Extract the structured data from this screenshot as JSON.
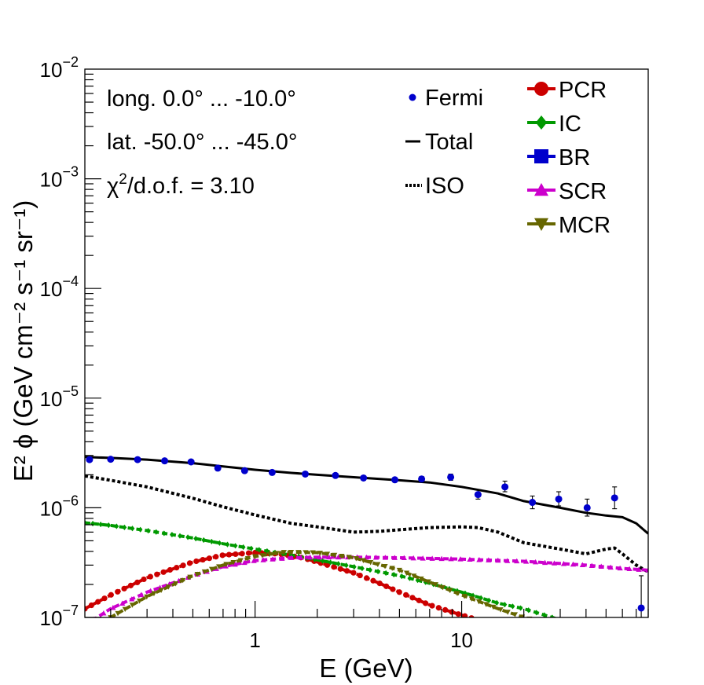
{
  "chart_data": {
    "type": "line",
    "xscale": "log",
    "yscale": "log",
    "xlim": [
      0.15,
      80
    ],
    "ylim": [
      1e-07,
      0.01
    ],
    "xlabel": "E (GeV)",
    "ylabel": "E² ϕ (GeV cm⁻² s⁻¹ sr⁻¹)",
    "x_ticks": [
      {
        "value": 1,
        "label": "1"
      },
      {
        "value": 10,
        "label": "10"
      }
    ],
    "y_ticks": [
      {
        "value": 1e-07,
        "base": "10",
        "exp": "−7"
      },
      {
        "value": 1e-06,
        "base": "10",
        "exp": "−6"
      },
      {
        "value": 1e-05,
        "base": "10",
        "exp": "−5"
      },
      {
        "value": 0.0001,
        "base": "10",
        "exp": "−4"
      },
      {
        "value": 0.001,
        "base": "10",
        "exp": "−3"
      },
      {
        "value": 0.01,
        "base": "10",
        "exp": "−2"
      }
    ],
    "annotations": {
      "longitude": "long. 0.0° ... -10.0°",
      "latitude": "lat. -50.0° ... -45.0°",
      "chi2_symbol": "χ",
      "chi2_sup": "2",
      "chi2_rest": "/d.o.f. = 3.10"
    },
    "fermi": {
      "name": "Fermi",
      "color": "#0000cc",
      "points": [
        {
          "x": 0.158,
          "y": 2.75e-06,
          "lo": 2.7e-06,
          "hi": 2.8e-06
        },
        {
          "x": 0.2,
          "y": 2.77e-06,
          "lo": 2.72e-06,
          "hi": 2.82e-06
        },
        {
          "x": 0.27,
          "y": 2.75e-06,
          "lo": 2.7e-06,
          "hi": 2.8e-06
        },
        {
          "x": 0.365,
          "y": 2.68e-06,
          "lo": 2.63e-06,
          "hi": 2.73e-06
        },
        {
          "x": 0.49,
          "y": 2.62e-06,
          "lo": 2.57e-06,
          "hi": 2.67e-06
        },
        {
          "x": 0.66,
          "y": 2.3e-06,
          "lo": 2.25e-06,
          "hi": 2.35e-06
        },
        {
          "x": 0.89,
          "y": 2.18e-06,
          "lo": 2.13e-06,
          "hi": 2.23e-06
        },
        {
          "x": 1.21,
          "y": 2.1e-06,
          "lo": 2.05e-06,
          "hi": 2.15e-06
        },
        {
          "x": 1.75,
          "y": 2.03e-06,
          "lo": 1.98e-06,
          "hi": 2.08e-06
        },
        {
          "x": 2.45,
          "y": 1.97e-06,
          "lo": 1.92e-06,
          "hi": 2.02e-06
        },
        {
          "x": 3.35,
          "y": 1.87e-06,
          "lo": 1.82e-06,
          "hi": 1.92e-06
        },
        {
          "x": 4.75,
          "y": 1.8e-06,
          "lo": 1.74e-06,
          "hi": 1.86e-06
        },
        {
          "x": 6.4,
          "y": 1.83e-06,
          "lo": 1.74e-06,
          "hi": 1.93e-06
        },
        {
          "x": 8.85,
          "y": 1.9e-06,
          "lo": 1.78e-06,
          "hi": 2.03e-06
        },
        {
          "x": 12.0,
          "y": 1.32e-06,
          "lo": 1.2e-06,
          "hi": 1.46e-06
        },
        {
          "x": 16.2,
          "y": 1.55e-06,
          "lo": 1.4e-06,
          "hi": 1.75e-06
        },
        {
          "x": 22.0,
          "y": 1.12e-06,
          "lo": 9.8e-07,
          "hi": 1.28e-06
        },
        {
          "x": 29.5,
          "y": 1.2e-06,
          "lo": 1.04e-06,
          "hi": 1.4e-06
        },
        {
          "x": 40.5,
          "y": 1e-06,
          "lo": 8.4e-07,
          "hi": 1.2e-06
        },
        {
          "x": 55.0,
          "y": 1.23e-06,
          "lo": 9.8e-07,
          "hi": 1.55e-06
        },
        {
          "x": 74.0,
          "y": 1.22e-07,
          "lo": 1e-07,
          "hi": 2.4e-07
        }
      ]
    },
    "series": [
      {
        "name": "Total",
        "style": "solid",
        "color": "#000000",
        "x": [
          0.15,
          0.2,
          0.3,
          0.5,
          0.7,
          1.0,
          1.5,
          2.0,
          3.0,
          5.0,
          7.0,
          10.0,
          15.0,
          20.0,
          30.0,
          40.0,
          50.0,
          60.0,
          70.0,
          80.0
        ],
        "y": [
          2.9e-06,
          2.85e-06,
          2.75e-06,
          2.55e-06,
          2.38e-06,
          2.22e-06,
          2.08e-06,
          2e-06,
          1.9e-06,
          1.78e-06,
          1.7e-06,
          1.55e-06,
          1.35e-06,
          1.15e-06,
          1e-06,
          9e-07,
          8.5e-07,
          8.2e-07,
          7.2e-07,
          5.8e-07
        ]
      },
      {
        "name": "ISO",
        "style": "dotted",
        "color": "#000000",
        "x": [
          0.15,
          0.2,
          0.3,
          0.5,
          0.7,
          1.0,
          1.5,
          2.0,
          3.0,
          4.0,
          5.0,
          7.0,
          10.0,
          12.0,
          15.0,
          20.0,
          30.0,
          40.0,
          50.0,
          55.0,
          60.0,
          70.0,
          80.0
        ],
        "y": [
          1.95e-06,
          1.78e-06,
          1.55e-06,
          1.22e-06,
          1.02e-06,
          8.6e-07,
          7.2e-07,
          6.7e-07,
          6e-07,
          6.1e-07,
          6.3e-07,
          6.6e-07,
          6.7e-07,
          6.6e-07,
          6e-07,
          4.8e-07,
          4.2e-07,
          3.8e-07,
          4.2e-07,
          4.3e-07,
          3.8e-07,
          3e-07,
          2.6e-07
        ]
      },
      {
        "name": "PCR",
        "style": "dashed-marker",
        "color": "#cc0000",
        "marker": "circle",
        "x": [
          0.15,
          0.2,
          0.3,
          0.5,
          0.7,
          1.0,
          1.3,
          1.7,
          2.0,
          3.0,
          4.0,
          5.0,
          7.0,
          10.0,
          12.0
        ],
        "y": [
          1.2e-07,
          1.6e-07,
          2.3e-07,
          3.2e-07,
          3.7e-07,
          3.9e-07,
          3.8e-07,
          3.5e-07,
          3.2e-07,
          2.55e-07,
          2.05e-07,
          1.7e-07,
          1.3e-07,
          1.05e-07,
          9.5e-08
        ]
      },
      {
        "name": "IC",
        "style": "dashed-marker",
        "color": "#009900",
        "marker": "diamond",
        "x": [
          0.15,
          0.2,
          0.3,
          0.5,
          0.7,
          1.0,
          1.5,
          2.0,
          3.0,
          5.0,
          7.0,
          10.0,
          15.0,
          20.0,
          30.0
        ],
        "y": [
          7.3e-07,
          6.9e-07,
          6.2e-07,
          5.3e-07,
          4.7e-07,
          4.2e-07,
          3.7e-07,
          3.35e-07,
          2.9e-07,
          2.4e-07,
          2.05e-07,
          1.7e-07,
          1.35e-07,
          1.2e-07,
          9.5e-08
        ]
      },
      {
        "name": "BR",
        "style": "dashed-marker",
        "color": "#0000cc",
        "marker": "square",
        "x": [],
        "y": []
      },
      {
        "name": "SCR",
        "style": "dashed-marker",
        "color": "#cc00cc",
        "marker": "triangle-up",
        "x": [
          0.15,
          0.2,
          0.3,
          0.5,
          0.7,
          1.0,
          1.5,
          2.0,
          3.0,
          5.0,
          10.0,
          20.0,
          40.0,
          60.0,
          80.0
        ],
        "y": [
          8.5e-08,
          1.2e-07,
          1.7e-07,
          2.4e-07,
          2.9e-07,
          3.3e-07,
          3.5e-07,
          3.55e-07,
          3.55e-07,
          3.5e-07,
          3.4e-07,
          3.25e-07,
          3e-07,
          2.8e-07,
          2.7e-07
        ]
      },
      {
        "name": "MCR",
        "style": "dashed-marker",
        "color": "#666600",
        "marker": "triangle-down",
        "x": [
          0.2,
          0.3,
          0.5,
          0.7,
          1.0,
          1.4,
          2.0,
          3.0,
          5.0,
          7.0,
          10.0,
          15.0,
          20.0,
          25.0
        ],
        "y": [
          1e-07,
          1.55e-07,
          2.4e-07,
          3e-07,
          3.6e-07,
          3.95e-07,
          3.9e-07,
          3.5e-07,
          2.7e-07,
          2.1e-07,
          1.6e-07,
          1.2e-07,
          1e-07,
          9e-08
        ]
      }
    ],
    "legend_center": [
      {
        "label": "Fermi",
        "kind": "point",
        "color": "#0000cc"
      },
      {
        "label": "Total",
        "kind": "solid",
        "color": "#000000"
      },
      {
        "label": "ISO",
        "kind": "dotted",
        "color": "#000000"
      }
    ],
    "legend_right": [
      {
        "label": "PCR",
        "marker": "circle",
        "color": "#cc0000"
      },
      {
        "label": "IC",
        "marker": "diamond",
        "color": "#009900"
      },
      {
        "label": "BR",
        "marker": "square",
        "color": "#0000cc"
      },
      {
        "label": "SCR",
        "marker": "triangle-up",
        "color": "#cc00cc"
      },
      {
        "label": "MCR",
        "marker": "triangle-down",
        "color": "#666600"
      }
    ]
  }
}
